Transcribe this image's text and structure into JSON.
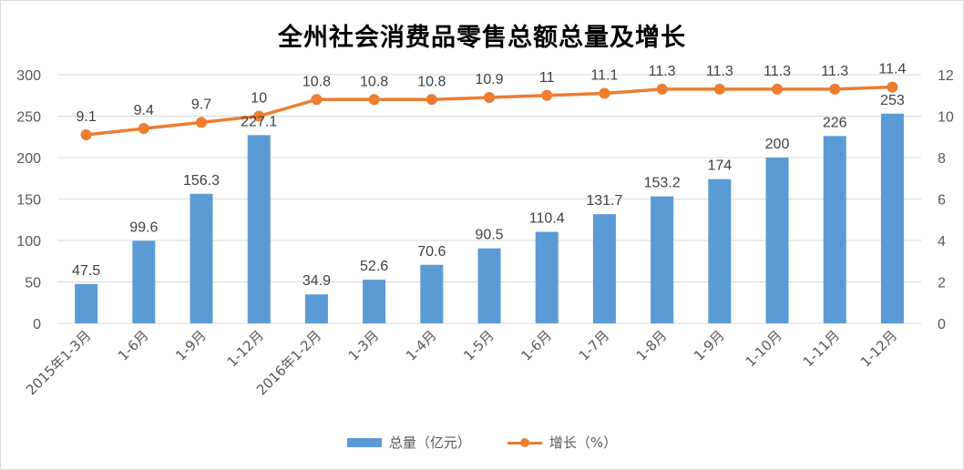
{
  "colors": {
    "bar": "#5b9bd5",
    "line": "#ed7d31",
    "grid": "#d9d9d9",
    "text": "#595959"
  },
  "chart_data": {
    "type": "bar+line",
    "title": "全州社会消费品零售总额总量及增长",
    "categories": [
      "2015年1-3月",
      "1-6月",
      "1-9月",
      "1-12月",
      "2016年1-2月",
      "1-3月",
      "1-4月",
      "1-5月",
      "1-6月",
      "1-7月",
      "1-8月",
      "1-9月",
      "1-10月",
      "1-11月",
      "1-12月"
    ],
    "series": [
      {
        "name": "总量（亿元）",
        "type": "bar",
        "axis": "left",
        "values": [
          47.5,
          99.6,
          156.3,
          227.1,
          34.9,
          52.6,
          70.6,
          90.5,
          110.4,
          131.7,
          153.2,
          174,
          200,
          226,
          253
        ],
        "labels": [
          "47.5",
          "99.6",
          "156.3",
          "227.1",
          "34.9",
          "52.6",
          "70.6",
          "90.5",
          "110.4",
          "131.7",
          "153.2",
          "174",
          "200",
          "226",
          "253"
        ]
      },
      {
        "name": "增长（%）",
        "type": "line",
        "axis": "right",
        "values": [
          9.1,
          9.4,
          9.7,
          10,
          10.8,
          10.8,
          10.8,
          10.9,
          11,
          11.1,
          11.3,
          11.3,
          11.3,
          11.3,
          11.4
        ],
        "labels": [
          "9.1",
          "9.4",
          "9.7",
          "10",
          "10.8",
          "10.8",
          "10.8",
          "10.9",
          "11",
          "11.1",
          "11.3",
          "11.3",
          "11.3",
          "11.3",
          "11.4"
        ]
      }
    ],
    "y_left": {
      "min": 0,
      "max": 300,
      "ticks": [
        "0",
        "50",
        "100",
        "150",
        "200",
        "250",
        "300"
      ]
    },
    "y_right": {
      "min": 0,
      "max": 12,
      "ticks": [
        "0",
        "2",
        "4",
        "6",
        "8",
        "10",
        "12"
      ]
    },
    "grid": true,
    "legend_position": "bottom"
  }
}
